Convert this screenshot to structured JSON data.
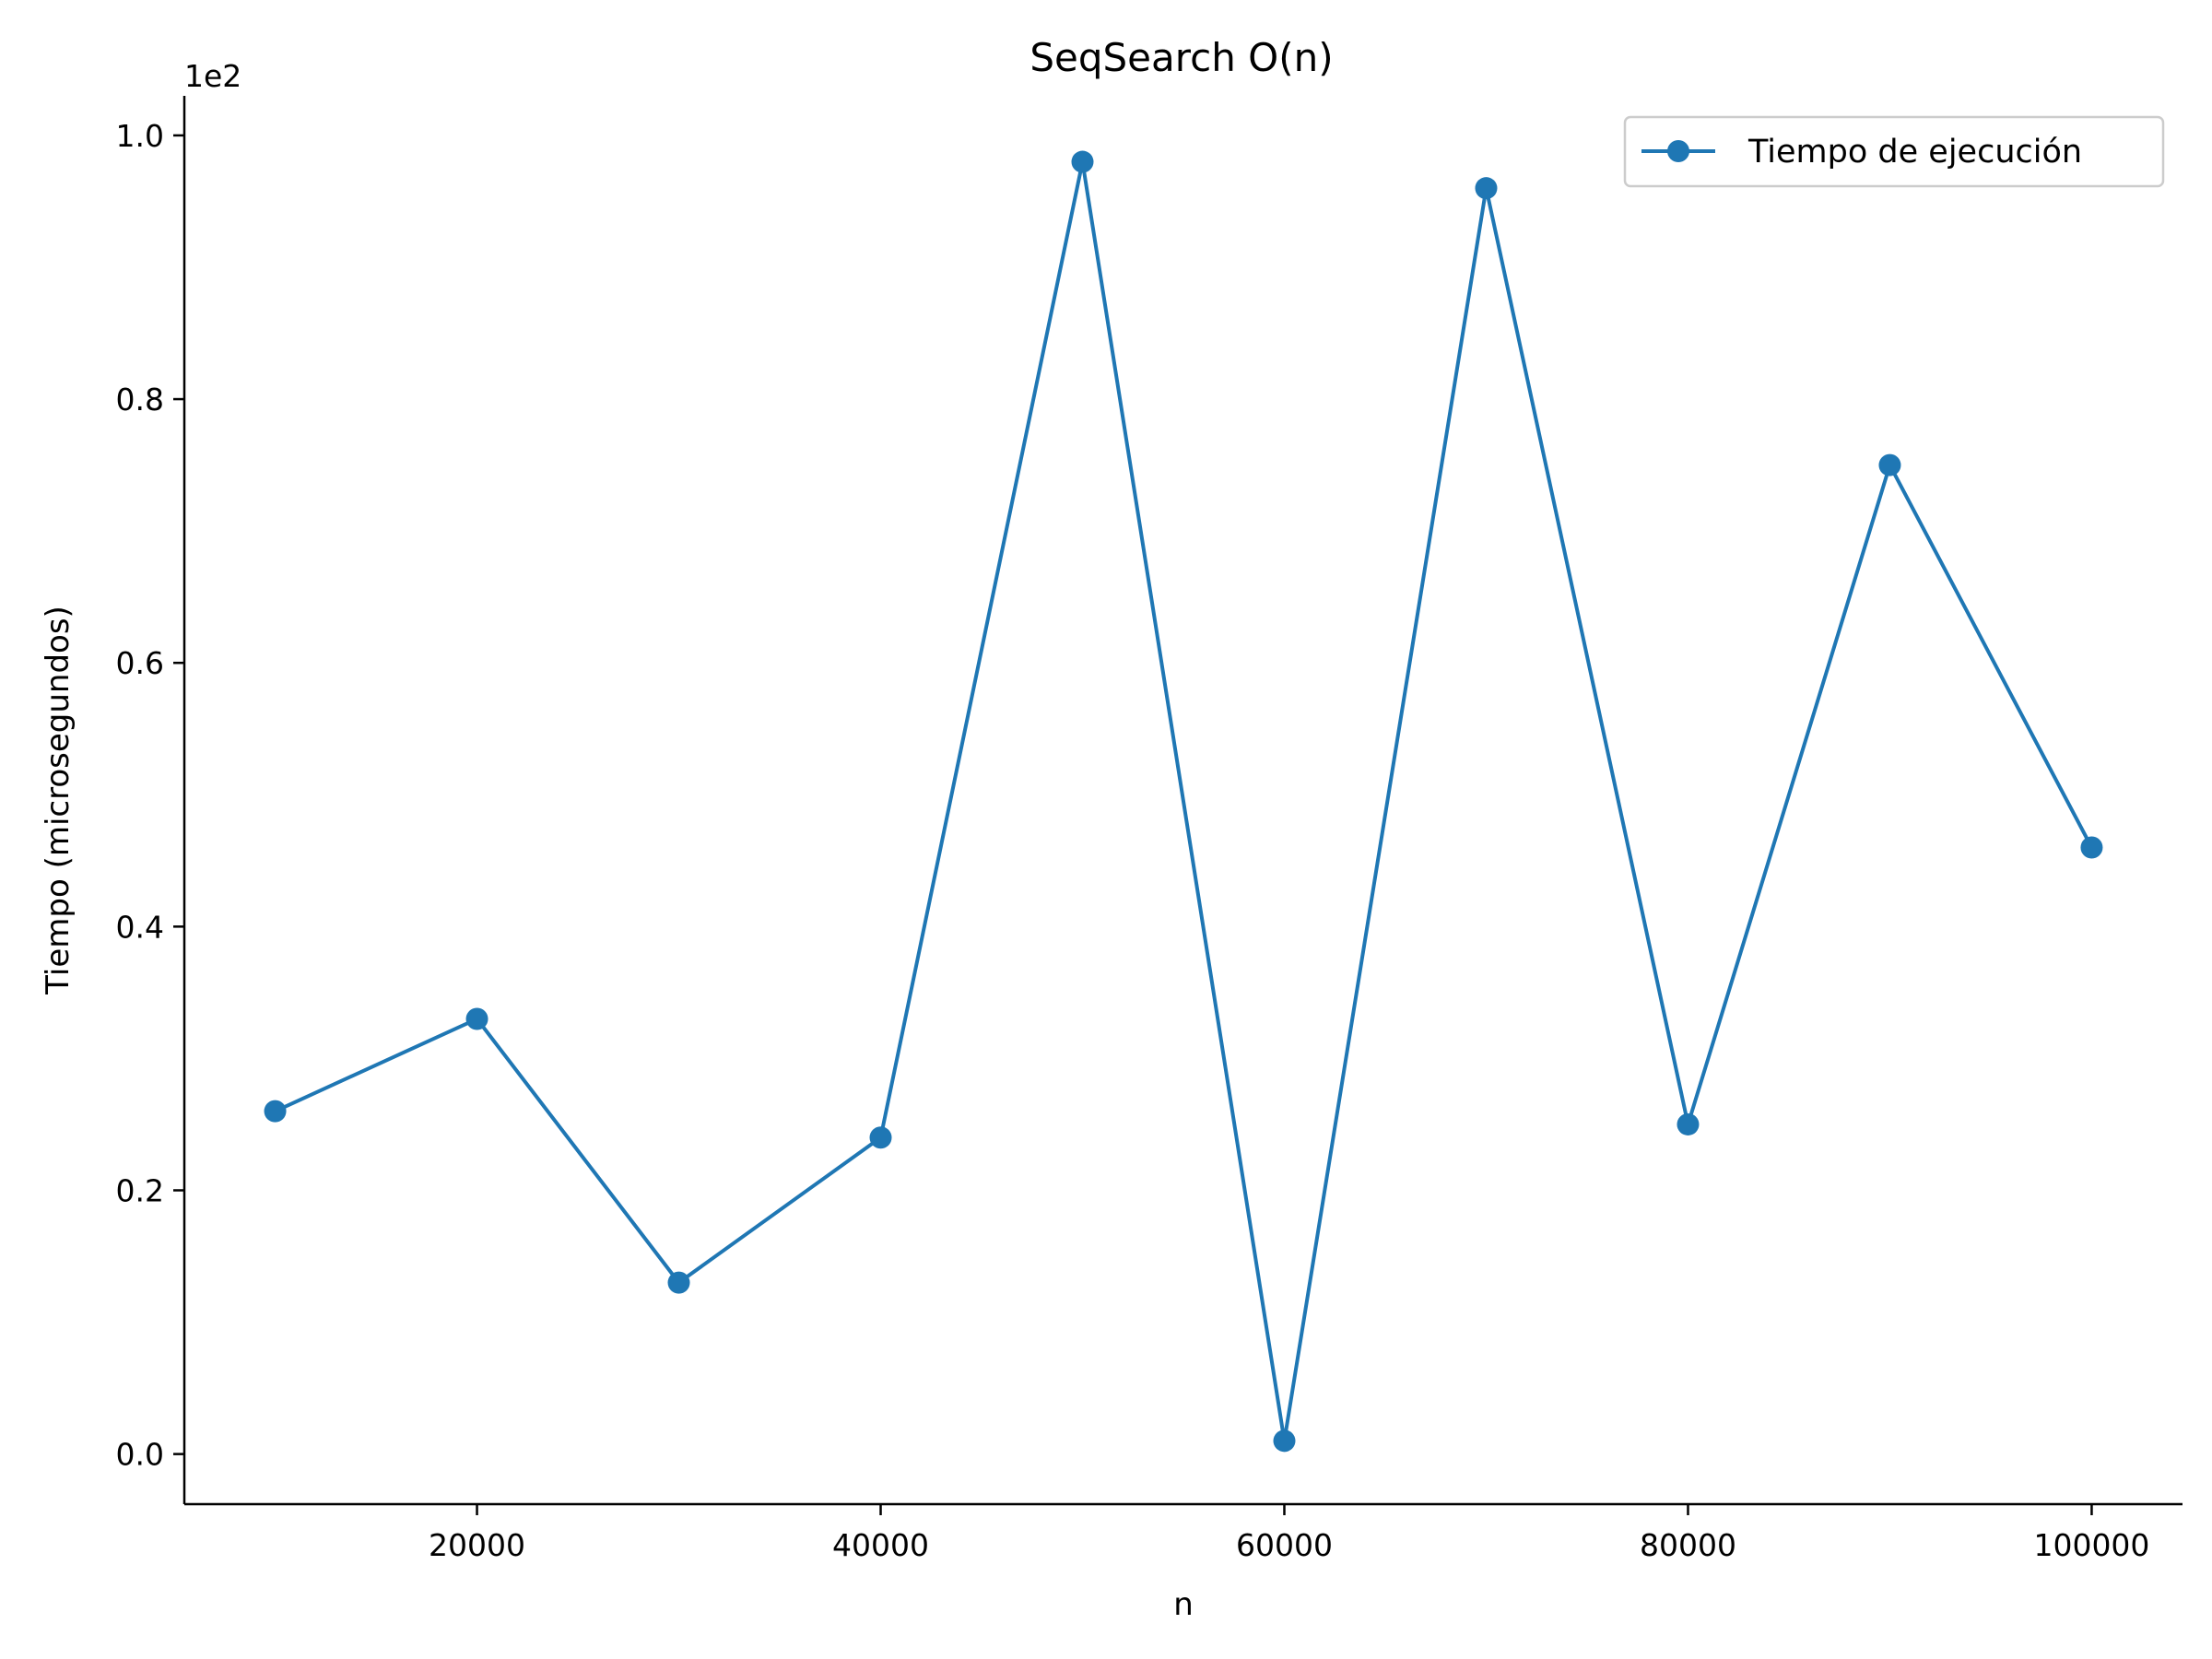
{
  "chart_data": {
    "type": "line",
    "title": "SeqSearch O(n)",
    "xlabel": "n",
    "ylabel": "Tiempo (microsegundos)",
    "y_offset_label": "1e2",
    "xlim": [
      5500,
      104500
    ],
    "ylim": [
      -0.038,
      1.03
    ],
    "x_ticks": [
      20000,
      40000,
      60000,
      80000,
      100000
    ],
    "x_tick_labels": [
      "20000",
      "40000",
      "60000",
      "80000",
      "100000"
    ],
    "y_ticks": [
      0.0,
      0.2,
      0.4,
      0.6,
      0.8,
      1.0
    ],
    "y_tick_labels": [
      "0.0",
      "0.2",
      "0.4",
      "0.6",
      "0.8",
      "1.0"
    ],
    "grid": false,
    "legend_position": "top-right",
    "series": [
      {
        "name": "Tiempo de ejecución",
        "color": "#1f77b4",
        "marker": "circle",
        "x": [
          10000,
          20000,
          30000,
          40000,
          50000,
          60000,
          70000,
          80000,
          90000,
          100000
        ],
        "y": [
          0.26,
          0.33,
          0.13,
          0.24,
          0.98,
          0.01,
          0.96,
          0.25,
          0.75,
          0.46
        ]
      }
    ]
  }
}
